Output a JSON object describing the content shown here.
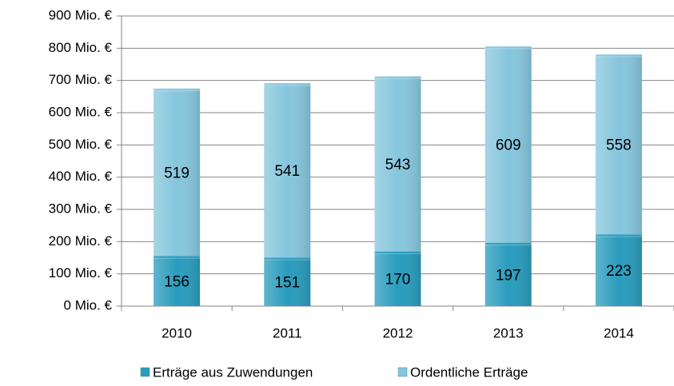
{
  "chart_data": {
    "type": "bar",
    "stacked": true,
    "categories": [
      "2010",
      "2011",
      "2012",
      "2013",
      "2014"
    ],
    "series": [
      {
        "name": "Erträge aus Zuwendungen",
        "color": "#2a9cbd",
        "values": [
          156,
          151,
          170,
          197,
          223
        ]
      },
      {
        "name": "Ordentliche Erträge",
        "color": "#86c6dd",
        "values": [
          519,
          541,
          543,
          609,
          558
        ]
      }
    ],
    "ylim": [
      0,
      900
    ],
    "yticks": [
      {
        "value": 0,
        "label": "0 Mio. €"
      },
      {
        "value": 100,
        "label": "100 Mio. €"
      },
      {
        "value": 200,
        "label": "200 Mio. €"
      },
      {
        "value": 300,
        "label": "300 Mio. €"
      },
      {
        "value": 400,
        "label": "400 Mio. €"
      },
      {
        "value": 500,
        "label": "500 Mio. €"
      },
      {
        "value": 600,
        "label": "600 Mio. €"
      },
      {
        "value": 700,
        "label": "700 Mio. €"
      },
      {
        "value": 800,
        "label": "800 Mio. €"
      },
      {
        "value": 900,
        "label": "900 Mio. €"
      }
    ],
    "grid": true,
    "legend": "bottom"
  }
}
